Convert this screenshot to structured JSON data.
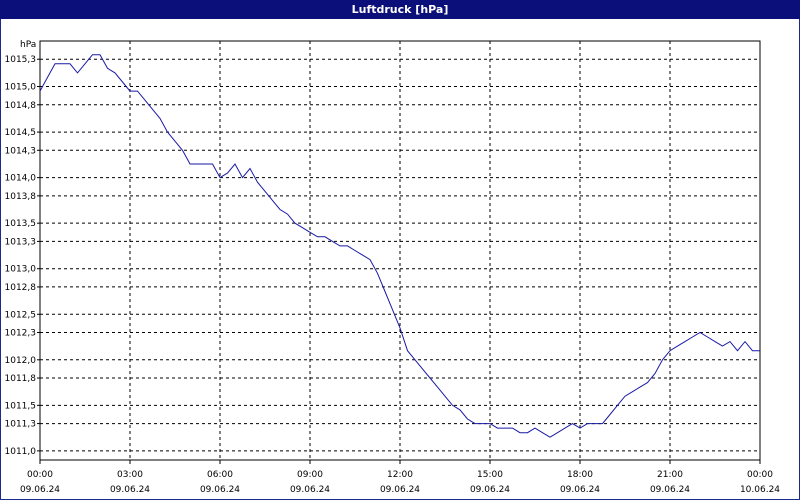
{
  "window": {
    "title": "Luftdruck [hPa]"
  },
  "chart_data": {
    "type": "line",
    "title": "Luftdruck [hPa]",
    "ylabel": "hPa",
    "xlabel": "",
    "ylim": [
      1010.9,
      1015.5
    ],
    "xlim": [
      0,
      24
    ],
    "grid": true,
    "y_ticks": [
      "1011,0",
      "1011,3",
      "1011,5",
      "1011,8",
      "1012,0",
      "1012,3",
      "1012,5",
      "1012,8",
      "1013,0",
      "1013,3",
      "1013,5",
      "1013,8",
      "1014,0",
      "1014,3",
      "1014,5",
      "1014,8",
      "1015,0",
      "1015,3"
    ],
    "x_ticks": [
      {
        "time": "00:00",
        "date": "09.06.24"
      },
      {
        "time": "03:00",
        "date": "09.06.24"
      },
      {
        "time": "06:00",
        "date": "09.06.24"
      },
      {
        "time": "09:00",
        "date": "09.06.24"
      },
      {
        "time": "12:00",
        "date": "09.06.24"
      },
      {
        "time": "15:00",
        "date": "09.06.24"
      },
      {
        "time": "18:00",
        "date": "09.06.24"
      },
      {
        "time": "21:00",
        "date": "09.06.24"
      },
      {
        "time": "00:00",
        "date": "10.06.24"
      }
    ],
    "series": [
      {
        "color": "#1a1aa6",
        "x": [
          0,
          0.25,
          0.5,
          0.75,
          1.0,
          1.25,
          1.5,
          1.75,
          2.0,
          2.25,
          2.5,
          2.75,
          3.0,
          3.25,
          3.5,
          3.75,
          4.0,
          4.25,
          4.5,
          4.75,
          5.0,
          5.25,
          5.5,
          5.75,
          6.0,
          6.25,
          6.5,
          6.75,
          7.0,
          7.25,
          7.5,
          7.75,
          8.0,
          8.25,
          8.5,
          8.75,
          9.0,
          9.25,
          9.5,
          9.75,
          10.0,
          10.25,
          10.5,
          10.75,
          11.0,
          11.25,
          11.5,
          11.75,
          12.0,
          12.25,
          12.5,
          12.75,
          13.0,
          13.25,
          13.5,
          13.75,
          14.0,
          14.25,
          14.5,
          14.75,
          15.0,
          15.25,
          15.5,
          15.75,
          16.0,
          16.25,
          16.5,
          16.75,
          17.0,
          17.25,
          17.5,
          17.75,
          18.0,
          18.25,
          18.5,
          18.75,
          19.0,
          19.25,
          19.5,
          19.75,
          20.0,
          20.25,
          20.5,
          20.75,
          21.0,
          21.25,
          21.5,
          21.75,
          22.0,
          22.25,
          22.5,
          22.75,
          23.0,
          23.25,
          23.5,
          23.75,
          24.0
        ],
        "y": [
          1014.95,
          1015.1,
          1015.25,
          1015.25,
          1015.25,
          1015.15,
          1015.25,
          1015.35,
          1015.35,
          1015.2,
          1015.15,
          1015.05,
          1014.95,
          1014.95,
          1014.85,
          1014.75,
          1014.65,
          1014.5,
          1014.4,
          1014.3,
          1014.15,
          1014.15,
          1014.15,
          1014.15,
          1014.0,
          1014.05,
          1014.15,
          1014.0,
          1014.1,
          1013.95,
          1013.85,
          1013.75,
          1013.65,
          1013.6,
          1013.5,
          1013.45,
          1013.4,
          1013.35,
          1013.35,
          1013.3,
          1013.25,
          1013.25,
          1013.2,
          1013.15,
          1013.1,
          1012.95,
          1012.75,
          1012.55,
          1012.35,
          1012.1,
          1012.0,
          1011.9,
          1011.8,
          1011.7,
          1011.6,
          1011.5,
          1011.45,
          1011.35,
          1011.3,
          1011.3,
          1011.3,
          1011.25,
          1011.25,
          1011.25,
          1011.2,
          1011.2,
          1011.25,
          1011.2,
          1011.15,
          1011.2,
          1011.25,
          1011.3,
          1011.25,
          1011.3,
          1011.3,
          1011.3,
          1011.4,
          1011.5,
          1011.6,
          1011.65,
          1011.7,
          1011.75,
          1011.85,
          1012.0,
          1012.1,
          1012.15,
          1012.2,
          1012.25,
          1012.3,
          1012.25,
          1012.2,
          1012.15,
          1012.2,
          1012.1,
          1012.2,
          1012.1,
          1012.1
        ]
      }
    ]
  }
}
